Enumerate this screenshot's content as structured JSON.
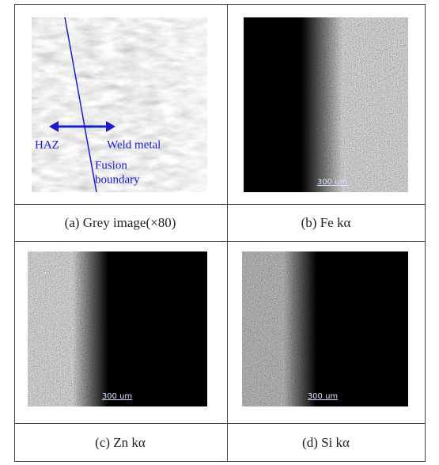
{
  "figure": {
    "panels": [
      {
        "caption": "(a) Grey image(×80)",
        "annotations": [
          "HAZ",
          "Weld metal",
          "Fusion",
          "boundary"
        ]
      },
      {
        "caption": "(b) Fe kα",
        "scale_bar": "300 um"
      },
      {
        "caption": "(c) Zn kα",
        "scale_bar": "300 um"
      },
      {
        "caption": "(d) Si kα",
        "scale_bar": "300 um"
      }
    ]
  }
}
